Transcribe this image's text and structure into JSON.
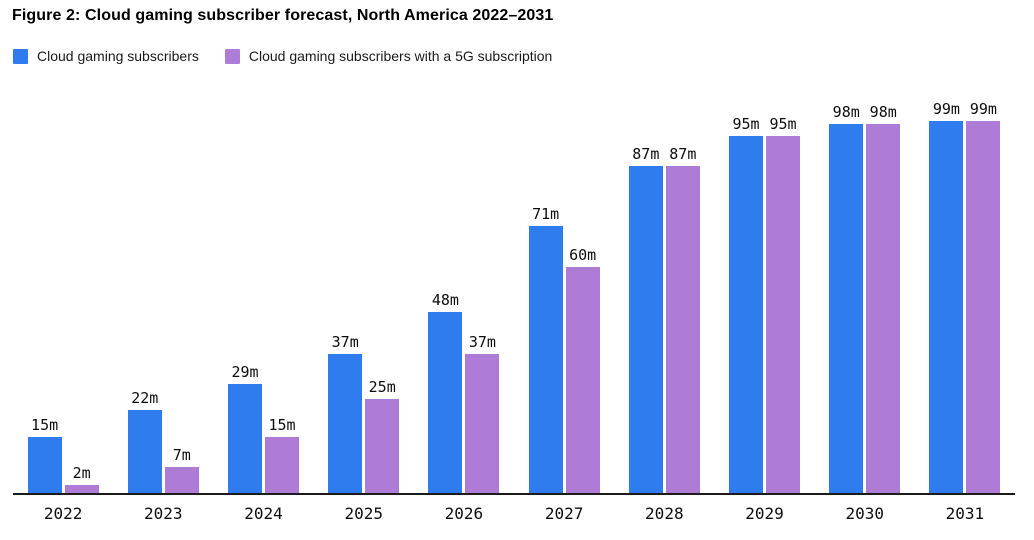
{
  "figure": {
    "title": "Figure 2: Cloud gaming subscriber forecast, North America 2022–2031"
  },
  "legend": {
    "items": [
      {
        "label": "Cloud gaming subscribers",
        "color": "#2E7CEE",
        "swatch_icon": "blue-square-swatch"
      },
      {
        "label": "Cloud gaming subscribers with a 5G subscription",
        "color": "#AE7CD7",
        "swatch_icon": "purple-square-swatch"
      }
    ]
  },
  "chart_data": {
    "type": "bar",
    "title": "Figure 2: Cloud gaming subscriber forecast, North America 2022–2031",
    "categories": [
      "2022",
      "2023",
      "2024",
      "2025",
      "2026",
      "2027",
      "2028",
      "2029",
      "2030",
      "2031"
    ],
    "series": [
      {
        "name": "Cloud gaming subscribers",
        "color": "#2E7CEE",
        "values": [
          15,
          22,
          29,
          37,
          48,
          71,
          87,
          95,
          98,
          99
        ],
        "data_labels": [
          "15m",
          "22m",
          "29m",
          "37m",
          "48m",
          "71m",
          "87m",
          "95m",
          "98m",
          "99m"
        ]
      },
      {
        "name": "Cloud gaming subscribers with a 5G subscription",
        "color": "#AE7CD7",
        "values": [
          2,
          7,
          15,
          25,
          37,
          60,
          87,
          95,
          98,
          99
        ],
        "data_labels": [
          "2m",
          "7m",
          "15m",
          "25m",
          "37m",
          "60m",
          "87m",
          "95m",
          "98m",
          "99m"
        ]
      }
    ],
    "unit": "m",
    "xlabel": "",
    "ylabel": "",
    "ylim": [
      0,
      100
    ],
    "grid": false,
    "y_axis_visible": false,
    "x_axis_line_color": "#1b1b1b",
    "legend_position": "top-left",
    "value_labels": "above-bars"
  }
}
